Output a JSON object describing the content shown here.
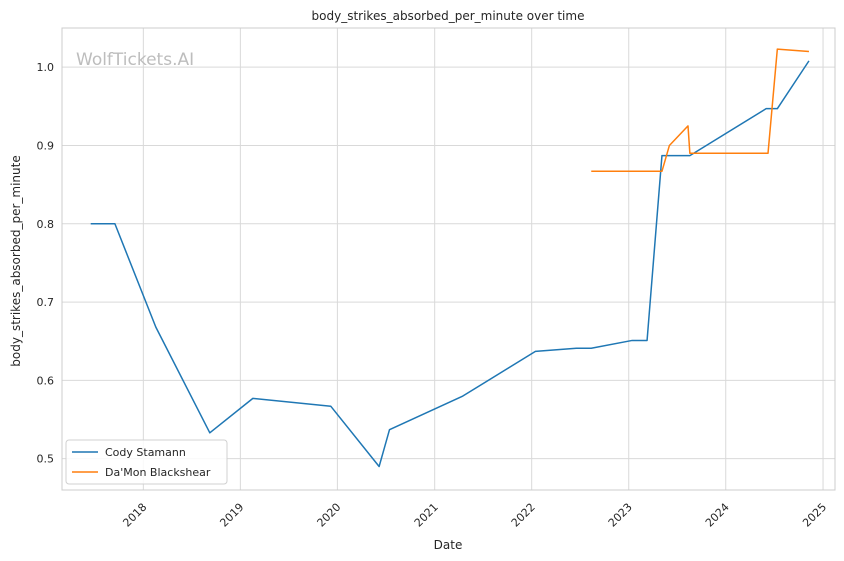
{
  "chart_data": {
    "type": "line",
    "title": "body_strikes_absorbed_per_minute over time",
    "xlabel": "Date",
    "ylabel": "body_strikes_absorbed_per_minute",
    "watermark": "WolfTickets.AI",
    "xlim": [
      "2017-03-01",
      "2025-02-15"
    ],
    "ylim": [
      0.46,
      1.05
    ],
    "x_ticks": [
      "2018",
      "2019",
      "2020",
      "2021",
      "2022",
      "2023",
      "2024",
      "2025"
    ],
    "x_tick_dates": [
      "2018-01-01",
      "2019-01-01",
      "2020-01-01",
      "2021-01-01",
      "2022-01-01",
      "2023-01-01",
      "2024-01-01",
      "2025-01-01"
    ],
    "y_ticks": [
      "0.5",
      "0.6",
      "0.7",
      "0.8",
      "0.9",
      "1.0"
    ],
    "y_tick_values": [
      0.5,
      0.6,
      0.7,
      0.8,
      0.9,
      1.0
    ],
    "grid": true,
    "legend_position": "lower-left",
    "series": [
      {
        "name": "Cody Stamann",
        "color": "#1f77b4",
        "points": [
          {
            "x": "2017-06-17",
            "y": 0.8
          },
          {
            "x": "2017-09-16",
            "y": 0.8
          },
          {
            "x": "2018-02-17",
            "y": 0.668
          },
          {
            "x": "2018-09-08",
            "y": 0.533
          },
          {
            "x": "2019-02-17",
            "y": 0.577
          },
          {
            "x": "2019-12-07",
            "y": 0.567
          },
          {
            "x": "2020-06-06",
            "y": 0.49
          },
          {
            "x": "2020-07-15",
            "y": 0.537
          },
          {
            "x": "2021-04-17",
            "y": 0.58
          },
          {
            "x": "2022-01-15",
            "y": 0.637
          },
          {
            "x": "2022-06-18",
            "y": 0.641
          },
          {
            "x": "2022-08-13",
            "y": 0.641
          },
          {
            "x": "2023-01-14",
            "y": 0.651
          },
          {
            "x": "2023-03-11",
            "y": 0.651
          },
          {
            "x": "2023-05-06",
            "y": 0.887
          },
          {
            "x": "2023-08-19",
            "y": 0.887
          },
          {
            "x": "2024-06-01",
            "y": 0.947
          },
          {
            "x": "2024-07-13",
            "y": 0.947
          },
          {
            "x": "2024-11-09",
            "y": 1.008
          }
        ]
      },
      {
        "name": "Da'Mon Blackshear",
        "color": "#ff7f0e",
        "points": [
          {
            "x": "2022-08-13",
            "y": 0.867
          },
          {
            "x": "2023-05-06",
            "y": 0.867
          },
          {
            "x": "2023-06-03",
            "y": 0.9
          },
          {
            "x": "2023-08-12",
            "y": 0.925
          },
          {
            "x": "2023-08-19",
            "y": 0.89
          },
          {
            "x": "2024-06-08",
            "y": 0.89
          },
          {
            "x": "2024-07-13",
            "y": 1.023
          },
          {
            "x": "2024-11-09",
            "y": 1.02
          }
        ]
      }
    ]
  }
}
